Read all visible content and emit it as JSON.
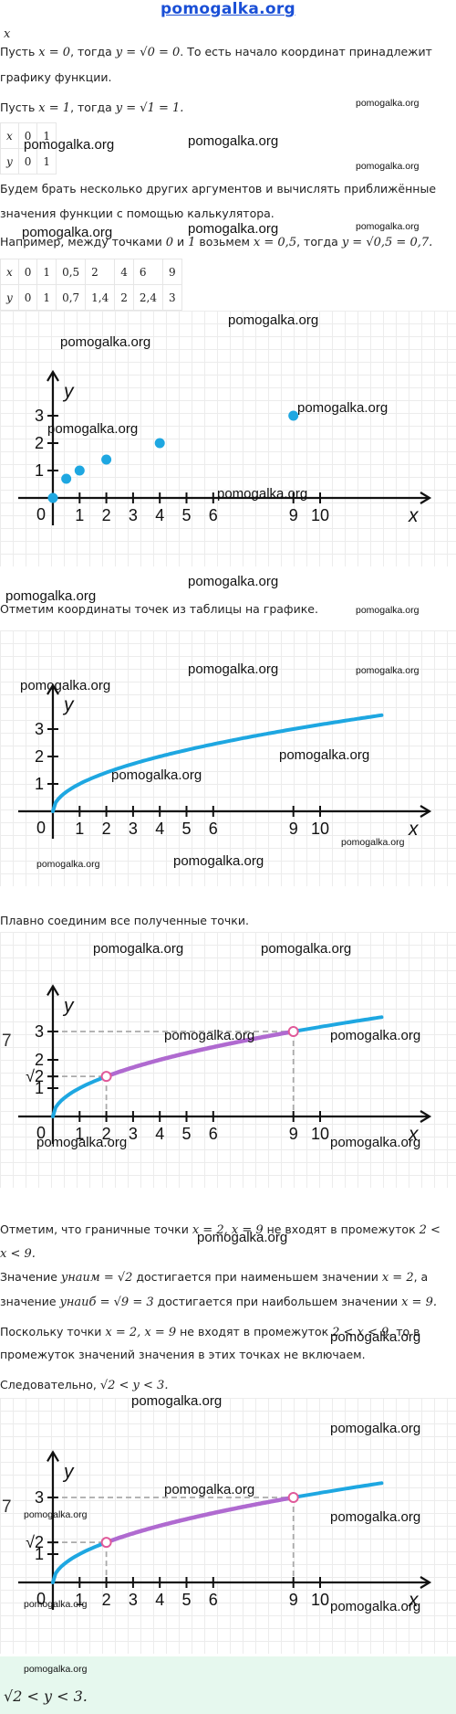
{
  "site": "pomogalka.org",
  "watermark": "pomogalka.org",
  "lines": {
    "x_var": "x",
    "l1a": "Пусть ",
    "l1m1": "x = 0",
    "l1b": ", тогда ",
    "l1m2": "y = √0 = 0",
    "l1c": ". То есть начало координат принадлежит",
    "l2": "графику функции.",
    "l3a": "Пусть ",
    "l3m1": "x = 1",
    "l3b": ", тогда ",
    "l3m2": "y = √1 = 1.",
    "l4": "Будем брать несколько других аргументов и вычислять приближённые",
    "l5": "значения функции с помощью калькулятора.",
    "l6a": "Например, между точками ",
    "l6m1": "0",
    "l6b": " и ",
    "l6m2": "1",
    "l6c": " возьмем ",
    "l6m3": "x = 0,5",
    "l6d": ", тогда ",
    "l6m4": "y = √0,5 = 0,7.",
    "l7": "Отметим координаты точек из таблицы на графике.",
    "l8": "Плавно соединим все полученные точки.",
    "l9a": "Отметим, что граничные точки ",
    "l9m1": "x = 2, x = 9",
    "l9b": " не входят в промежуток ",
    "l9m2": "2  <",
    "l10m": "x  <  9.",
    "l11a": "Значение ",
    "l11m1": "yнаим = √2",
    "l11b": " достигается при наименьшем значении ",
    "l11m2": "x = 2",
    "l11c": ", а",
    "l12a": "значение ",
    "l12m1": "yнаиб = √9 = 3",
    "l12b": " достигается при наибольшем значении ",
    "l12m2": "x = 9.",
    "l13a": "Поскольку точки ",
    "l13m1": "x = 2, x = 9",
    "l13b": " не входят в промежуток ",
    "l13m2": "2  <  x  <  9",
    "l13c": ", то в",
    "l14": "промежуток значений значения в этих точках не включаем.",
    "l15a": "Следовательно, ",
    "l15m": "√2  <  y  <  3.",
    "answer": "√2  <  y  <  3."
  },
  "table1": {
    "rows": [
      [
        "x",
        "0",
        "1"
      ],
      [
        "y",
        "0",
        "1"
      ]
    ]
  },
  "table2": {
    "rows": [
      [
        "x",
        "0",
        "1",
        "0,5",
        "2",
        "4",
        "6",
        "9"
      ],
      [
        "y",
        "0",
        "1",
        "0,7",
        "1,4",
        "2",
        "2,4",
        "3"
      ]
    ]
  },
  "axes": {
    "x_label": "x",
    "y_label": "y",
    "origin_label": "0",
    "x_ticks": [
      "1",
      "2",
      "3",
      "4",
      "5",
      "6",
      "9",
      "10"
    ],
    "y_ticks": [
      "1",
      "2",
      "3"
    ],
    "y_tick_sqrt2": "√2",
    "side_mark": "7"
  },
  "chart_data": [
    {
      "type": "scatter",
      "x": [
        0,
        0.5,
        1,
        2,
        4,
        9
      ],
      "y": [
        0,
        0.7,
        1,
        1.4,
        2,
        3
      ],
      "xlabel": "x",
      "ylabel": "y",
      "x_tick_labels": [
        1,
        2,
        3,
        4,
        5,
        6,
        9,
        10
      ],
      "y_tick_labels": [
        1,
        2,
        3
      ],
      "color": "#1ea7e1"
    },
    {
      "type": "line",
      "function": "y = √x",
      "xlim": [
        0,
        12.3
      ],
      "xlabel": "x",
      "ylabel": "y",
      "color": "#1ea7e1"
    },
    {
      "type": "line",
      "function": "y = √x",
      "highlight": {
        "x": [
          2,
          9
        ],
        "y": [
          1.414,
          3
        ],
        "color": "#b06ad0",
        "open_endpoints": true
      },
      "y_tick_labels": [
        "1",
        "√2",
        "2",
        "3"
      ],
      "xlabel": "x",
      "ylabel": "y"
    },
    {
      "type": "line",
      "function": "y = √x",
      "highlight": {
        "x": [
          2,
          9
        ],
        "y": [
          1.414,
          3
        ],
        "color": "#b06ad0",
        "open_endpoints": true
      },
      "y_tick_labels": [
        "1",
        "√2",
        "3"
      ],
      "xlabel": "x",
      "ylabel": "y"
    }
  ],
  "colors": {
    "curve": "#1ea7e1",
    "highlight": "#b06ad0",
    "answer_bg": "#e6f8ee",
    "site": "#1a4fd6"
  }
}
